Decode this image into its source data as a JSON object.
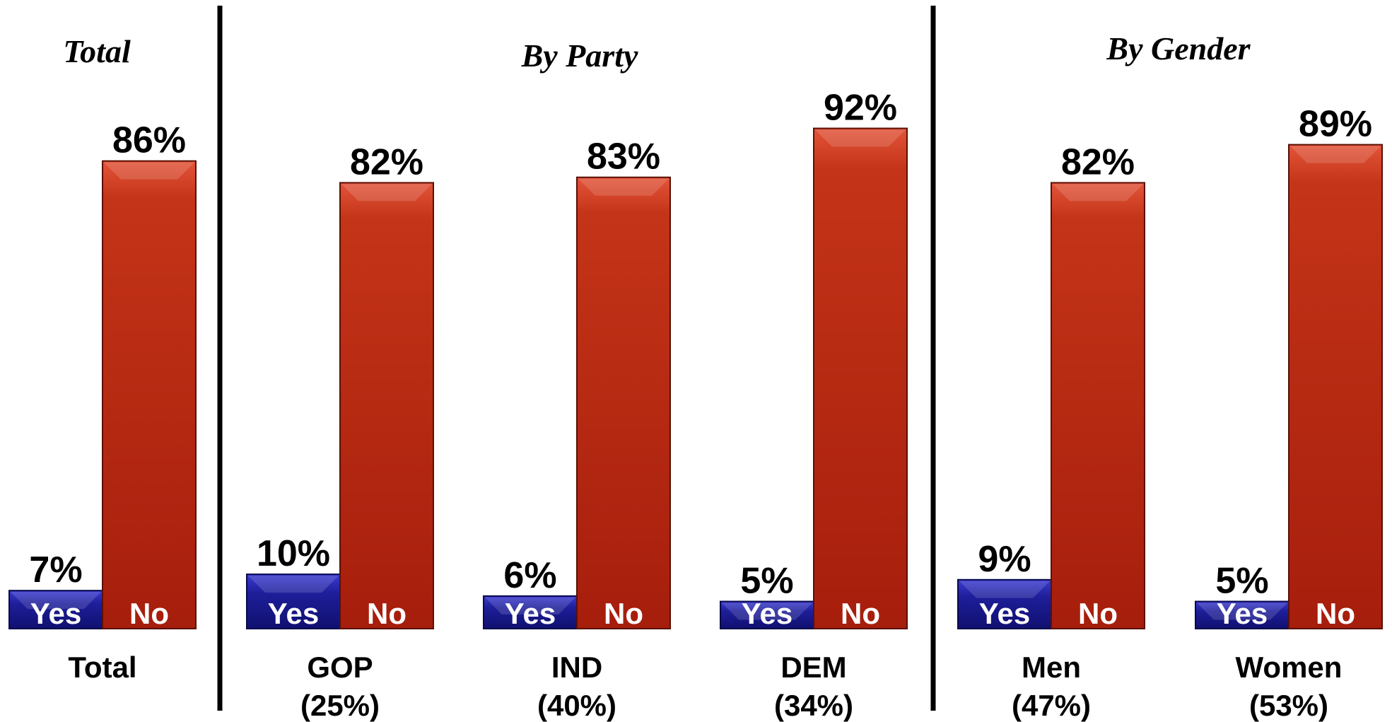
{
  "chart_data": {
    "type": "bar",
    "sections": [
      {
        "title": "Total",
        "groups": [
          0
        ]
      },
      {
        "title": "By Party",
        "groups": [
          1,
          2,
          3
        ]
      },
      {
        "title": "By Gender",
        "groups": [
          4,
          5
        ]
      }
    ],
    "categories": [
      {
        "name": "Total",
        "share": ""
      },
      {
        "name": "GOP",
        "share": "(25%)"
      },
      {
        "name": "IND",
        "share": "(40%)"
      },
      {
        "name": "DEM",
        "share": "(34%)"
      },
      {
        "name": "Men",
        "share": "(47%)"
      },
      {
        "name": "Women",
        "share": "(53%)"
      }
    ],
    "series": [
      {
        "name": "Yes",
        "values": [
          7,
          10,
          6,
          5,
          9,
          5
        ],
        "color": "#1a1a8c"
      },
      {
        "name": "No",
        "values": [
          86,
          82,
          83,
          92,
          82,
          89
        ],
        "color": "#b0200e"
      }
    ],
    "ylim": [
      0,
      100
    ],
    "value_suffix": "%",
    "grid": false,
    "legend": "none"
  }
}
